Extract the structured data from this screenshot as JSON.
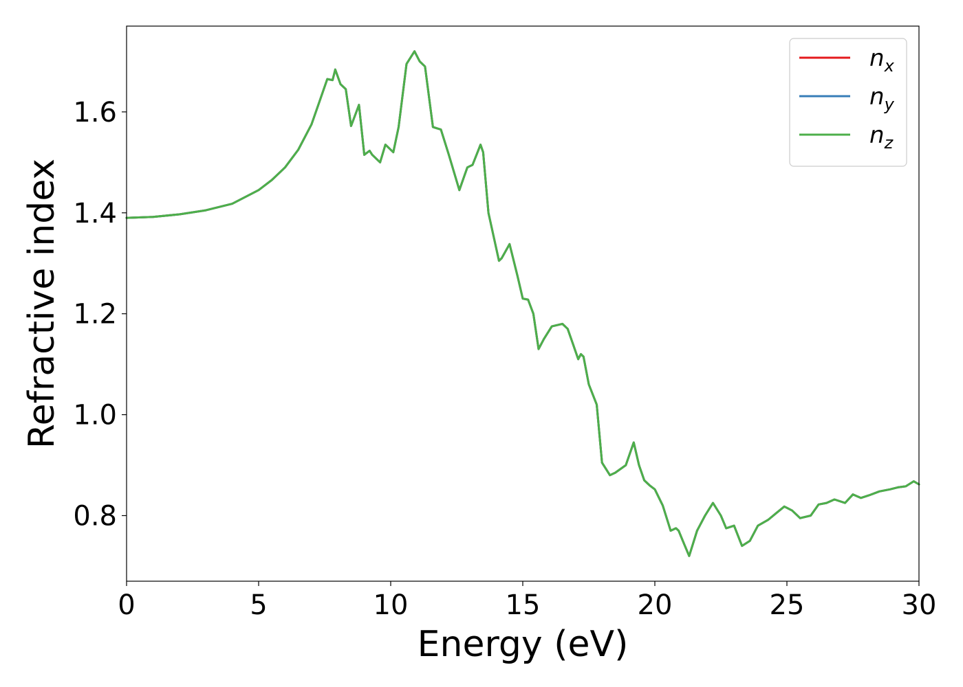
{
  "chart_data": {
    "type": "line",
    "xlabel": "Energy (eV)",
    "ylabel": "Refractive index",
    "xlim": [
      0,
      30
    ],
    "ylim": [
      0.67,
      1.77
    ],
    "xticks": [
      0,
      5,
      10,
      15,
      20,
      25,
      30
    ],
    "xtick_labels": [
      "0",
      "5",
      "10",
      "15",
      "20",
      "25",
      "30"
    ],
    "yticks": [
      0.8,
      1.0,
      1.2,
      1.4,
      1.6
    ],
    "ytick_labels": [
      "0.8",
      "1.0",
      "1.2",
      "1.4",
      "1.6"
    ],
    "grid": false,
    "legend_position": "top-right",
    "x": [
      0,
      1,
      2,
      3,
      4,
      5,
      5.5,
      6,
      6.5,
      7,
      7.3,
      7.6,
      7.8,
      7.9,
      8.1,
      8.3,
      8.5,
      8.8,
      9.0,
      9.2,
      9.3,
      9.6,
      9.8,
      10.1,
      10.3,
      10.6,
      10.9,
      11.1,
      11.3,
      11.6,
      11.9,
      12.2,
      12.6,
      12.9,
      13.1,
      13.4,
      13.5,
      13.7,
      14.1,
      14.2,
      14.5,
      14.8,
      15.0,
      15.2,
      15.4,
      15.6,
      15.8,
      16.1,
      16.5,
      16.7,
      16.9,
      17.1,
      17.2,
      17.3,
      17.5,
      17.8,
      18.0,
      18.3,
      18.5,
      18.9,
      19.2,
      19.4,
      19.6,
      19.8,
      20.0,
      20.3,
      20.6,
      20.8,
      20.9,
      21.1,
      21.3,
      21.6,
      21.9,
      22.2,
      22.5,
      22.7,
      23.0,
      23.3,
      23.6,
      23.9,
      24.3,
      24.6,
      24.9,
      25.2,
      25.5,
      25.9,
      26.2,
      26.5,
      26.8,
      27.2,
      27.5,
      27.8,
      28.1,
      28.5,
      28.9,
      29.2,
      29.5,
      29.8,
      30.0
    ],
    "series": [
      {
        "name": "x",
        "label_base": "n",
        "label_sub": "x",
        "color": "#e41a1c",
        "values": [
          1.39,
          1.392,
          1.397,
          1.405,
          1.418,
          1.445,
          1.465,
          1.49,
          1.525,
          1.575,
          1.62,
          1.665,
          1.663,
          1.684,
          1.655,
          1.645,
          1.572,
          1.614,
          1.515,
          1.523,
          1.515,
          1.5,
          1.535,
          1.52,
          1.57,
          1.695,
          1.72,
          1.7,
          1.69,
          1.57,
          1.565,
          1.515,
          1.445,
          1.49,
          1.495,
          1.535,
          1.52,
          1.4,
          1.305,
          1.31,
          1.338,
          1.275,
          1.23,
          1.228,
          1.2,
          1.13,
          1.15,
          1.175,
          1.18,
          1.17,
          1.14,
          1.11,
          1.12,
          1.115,
          1.06,
          1.02,
          0.905,
          0.88,
          0.885,
          0.9,
          0.945,
          0.9,
          0.87,
          0.86,
          0.852,
          0.82,
          0.77,
          0.775,
          0.77,
          0.745,
          0.72,
          0.77,
          0.8,
          0.825,
          0.8,
          0.775,
          0.78,
          0.74,
          0.75,
          0.78,
          0.792,
          0.805,
          0.818,
          0.81,
          0.795,
          0.8,
          0.822,
          0.825,
          0.832,
          0.825,
          0.842,
          0.835,
          0.84,
          0.848,
          0.852,
          0.856,
          0.858,
          0.868,
          0.862
        ]
      },
      {
        "name": "y",
        "label_base": "n",
        "label_sub": "y",
        "color": "#377eb8",
        "values": [
          1.39,
          1.392,
          1.397,
          1.405,
          1.418,
          1.445,
          1.465,
          1.49,
          1.525,
          1.575,
          1.62,
          1.665,
          1.663,
          1.684,
          1.655,
          1.645,
          1.572,
          1.614,
          1.515,
          1.523,
          1.515,
          1.5,
          1.535,
          1.52,
          1.57,
          1.695,
          1.72,
          1.7,
          1.69,
          1.57,
          1.565,
          1.515,
          1.445,
          1.49,
          1.495,
          1.535,
          1.52,
          1.4,
          1.305,
          1.31,
          1.338,
          1.275,
          1.23,
          1.228,
          1.2,
          1.13,
          1.15,
          1.175,
          1.18,
          1.17,
          1.14,
          1.11,
          1.12,
          1.115,
          1.06,
          1.02,
          0.905,
          0.88,
          0.885,
          0.9,
          0.945,
          0.9,
          0.87,
          0.86,
          0.852,
          0.82,
          0.77,
          0.775,
          0.77,
          0.745,
          0.72,
          0.77,
          0.8,
          0.825,
          0.8,
          0.775,
          0.78,
          0.74,
          0.75,
          0.78,
          0.792,
          0.805,
          0.818,
          0.81,
          0.795,
          0.8,
          0.822,
          0.825,
          0.832,
          0.825,
          0.842,
          0.835,
          0.84,
          0.848,
          0.852,
          0.856,
          0.858,
          0.868,
          0.862
        ]
      },
      {
        "name": "z",
        "label_base": "n",
        "label_sub": "z",
        "color": "#4daf4a",
        "values": [
          1.39,
          1.392,
          1.397,
          1.405,
          1.418,
          1.445,
          1.465,
          1.49,
          1.525,
          1.575,
          1.62,
          1.665,
          1.663,
          1.684,
          1.655,
          1.645,
          1.572,
          1.614,
          1.515,
          1.523,
          1.515,
          1.5,
          1.535,
          1.52,
          1.57,
          1.695,
          1.72,
          1.7,
          1.69,
          1.57,
          1.565,
          1.515,
          1.445,
          1.49,
          1.495,
          1.535,
          1.52,
          1.4,
          1.305,
          1.31,
          1.338,
          1.275,
          1.23,
          1.228,
          1.2,
          1.13,
          1.15,
          1.175,
          1.18,
          1.17,
          1.14,
          1.11,
          1.12,
          1.115,
          1.06,
          1.02,
          0.905,
          0.88,
          0.885,
          0.9,
          0.945,
          0.9,
          0.87,
          0.86,
          0.852,
          0.82,
          0.77,
          0.775,
          0.77,
          0.745,
          0.72,
          0.77,
          0.8,
          0.825,
          0.8,
          0.775,
          0.78,
          0.74,
          0.75,
          0.78,
          0.792,
          0.805,
          0.818,
          0.81,
          0.795,
          0.8,
          0.822,
          0.825,
          0.832,
          0.825,
          0.842,
          0.835,
          0.84,
          0.848,
          0.852,
          0.856,
          0.858,
          0.868,
          0.862
        ]
      }
    ]
  }
}
